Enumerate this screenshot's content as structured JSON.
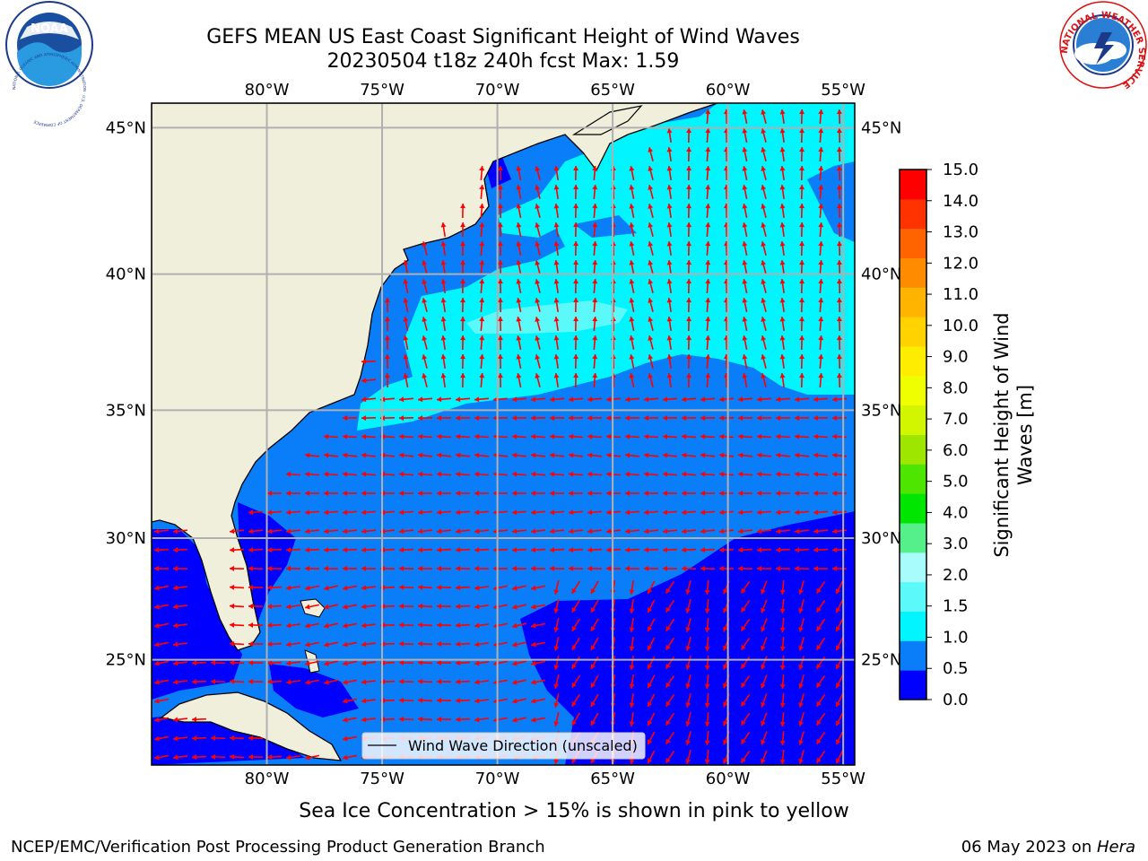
{
  "header": {
    "title_line1": "GEFS MEAN US East Coast Significant Height of Wind Waves",
    "title_line2": "20230504 t18z 240h fcst   Max: 1.59"
  },
  "logos": {
    "left": {
      "icon": "noaa-logo",
      "text": "NOAA",
      "ring_text": "NATIONAL OCEANIC AND ATMOSPHERIC ADMINISTRATION · U.S. DEPARTMENT OF COMMERCE"
    },
    "right": {
      "icon": "nws-logo",
      "ring_text": "NATIONAL WEATHER SERVICE"
    }
  },
  "map": {
    "lon_ticks": [
      "80°W",
      "75°W",
      "70°W",
      "65°W",
      "60°W",
      "55°W"
    ],
    "lat_ticks": [
      "45°N",
      "40°N",
      "35°N",
      "30°N",
      "25°N"
    ],
    "lon_values": [
      -80,
      -75,
      -70,
      -65,
      -60,
      -55
    ],
    "lat_values": [
      45,
      40,
      35,
      30,
      25
    ],
    "extent": {
      "lon": [
        -85,
        -54.5
      ],
      "lat": [
        20.5,
        45.8
      ]
    },
    "legend_label": "Wind Wave Direction (unscaled)",
    "colors": {
      "land": "#efefdc",
      "sea_0_05": "#0000ff",
      "sea_05_1": "#0a7df9",
      "sea_1_15": "#00f5ff",
      "sea_15_2": "#5cf9fb",
      "arrow": "#ff0000",
      "grid": "#b0b0b0"
    }
  },
  "colorbar": {
    "label": "Significant Height of Wind Waves [m]",
    "ticks": [
      "15.0",
      "14.0",
      "13.0",
      "12.0",
      "11.0",
      "10.0",
      "9.0",
      "8.0",
      "7.0",
      "6.0",
      "5.0",
      "4.0",
      "3.0",
      "2.0",
      "1.5",
      "1.0",
      "0.5",
      "0.0"
    ],
    "bands": [
      "#0000ff",
      "#0a7df9",
      "#00f5ff",
      "#5cf9fb",
      "#a8fcfc",
      "#55f08a",
      "#00e600",
      "#4ee600",
      "#9ee600",
      "#d2f500",
      "#f0ff00",
      "#ffed00",
      "#ffd200",
      "#ffb400",
      "#ff8c00",
      "#ff6400",
      "#ff3200",
      "#ff0000"
    ]
  },
  "footer": {
    "sea_ice_note": "Sea Ice Concentration > 15% is shown in pink to yellow",
    "credit": "NCEP/EMC/Verification Post Processing Product Generation Branch",
    "date_text": "06 May 2023 on ",
    "machine": "Hera"
  }
}
